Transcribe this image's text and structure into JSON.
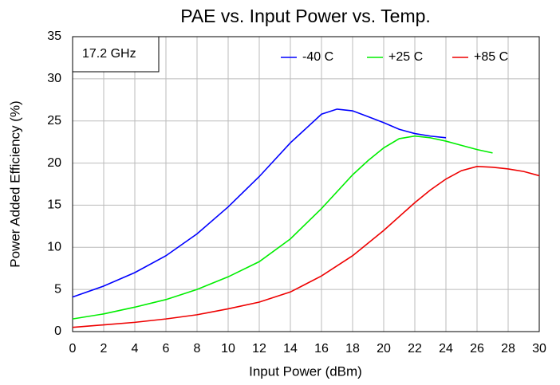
{
  "chart_data": {
    "type": "line",
    "title": "PAE vs. Input Power vs. Temp.",
    "xlabel": "Input Power (dBm)",
    "ylabel": "Power Added Efficiency (%)",
    "annotation": "17.2 GHz",
    "xlim": [
      0,
      30
    ],
    "xticks": [
      0,
      2,
      4,
      6,
      8,
      10,
      12,
      14,
      16,
      18,
      20,
      22,
      24,
      26,
      28,
      30
    ],
    "ylim": [
      0,
      35
    ],
    "yticks": [
      0,
      5,
      10,
      15,
      20,
      25,
      30,
      35
    ],
    "grid": true,
    "legend": "top-right",
    "series": [
      {
        "name": "-40 C",
        "color": "#0000ff",
        "x": [
          0,
          2,
          4,
          6,
          8,
          10,
          12,
          14,
          16,
          17,
          18,
          19,
          20,
          21,
          22,
          23,
          24
        ],
        "values": [
          4.1,
          5.4,
          7.0,
          9.0,
          11.6,
          14.8,
          18.4,
          22.4,
          25.8,
          26.4,
          26.2,
          25.5,
          24.8,
          24.0,
          23.5,
          23.2,
          23.0
        ]
      },
      {
        "name": "+25 C",
        "color": "#00ee00",
        "x": [
          0,
          2,
          4,
          6,
          8,
          10,
          12,
          14,
          16,
          18,
          19,
          20,
          21,
          22,
          23,
          24,
          25,
          26,
          27
        ],
        "values": [
          1.5,
          2.1,
          2.9,
          3.8,
          5.0,
          6.5,
          8.3,
          11.0,
          14.6,
          18.6,
          20.3,
          21.8,
          22.9,
          23.2,
          23.0,
          22.6,
          22.1,
          21.6,
          21.2
        ]
      },
      {
        "name": "+85 C",
        "color": "#ee0000",
        "x": [
          0,
          2,
          4,
          6,
          8,
          10,
          12,
          14,
          16,
          18,
          20,
          22,
          23,
          24,
          25,
          26,
          27,
          28,
          29,
          30
        ],
        "values": [
          0.5,
          0.8,
          1.1,
          1.5,
          2.0,
          2.7,
          3.5,
          4.7,
          6.6,
          9.0,
          12.0,
          15.3,
          16.8,
          18.1,
          19.1,
          19.6,
          19.5,
          19.3,
          19.0,
          18.5
        ]
      }
    ]
  }
}
